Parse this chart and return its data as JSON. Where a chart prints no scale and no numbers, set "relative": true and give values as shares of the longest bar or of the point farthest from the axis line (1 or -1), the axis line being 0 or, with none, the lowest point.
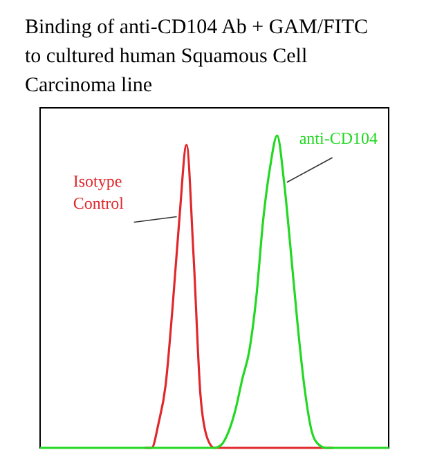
{
  "chart_data": {
    "type": "line",
    "title": "Binding of anti-CD104 Ab + GAM/FITC to cultured human Squamous Cell Carcinoma line",
    "relative": true,
    "categories": [
      null,
      null,
      null,
      null,
      null,
      null,
      null,
      null,
      null,
      null,
      null,
      null,
      null,
      null,
      null,
      null,
      null,
      null,
      null,
      null,
      null,
      null,
      null,
      null,
      null,
      null,
      null,
      null,
      null,
      null,
      null,
      null,
      null,
      null,
      null,
      null,
      null,
      null,
      null,
      null,
      null,
      null,
      null,
      null,
      null,
      null,
      null,
      null,
      null,
      null,
      null
    ],
    "series": [
      {
        "name": "Isotype Control",
        "color": "#e0282c",
        "values": [
          null,
          null,
          null,
          null,
          null,
          null,
          null,
          null,
          null,
          null,
          null,
          null,
          null,
          null,
          null,
          0,
          0,
          0.08,
          0.2,
          0.45,
          0.74,
          0.97,
          0.62,
          0.17,
          0.03,
          0,
          0,
          0,
          0,
          0,
          0,
          0,
          0,
          0,
          0,
          0,
          0,
          0,
          0,
          0,
          0,
          0,
          0,
          null,
          null,
          null,
          null,
          null,
          null,
          null,
          null
        ]
      },
      {
        "name": "anti-CD104",
        "color": "#22d822",
        "values": [
          0,
          0,
          0,
          0,
          0,
          0,
          0,
          0,
          0,
          0,
          0,
          0,
          0,
          0,
          0,
          0,
          0,
          0,
          0,
          0,
          0,
          0,
          0,
          0,
          0,
          0,
          0.01,
          0.05,
          0.12,
          0.22,
          0.31,
          0.48,
          0.73,
          0.9,
          1,
          0.85,
          0.62,
          0.38,
          0.18,
          0.05,
          0.01,
          0,
          0,
          0,
          0,
          0,
          0,
          0,
          0,
          0,
          0
        ]
      }
    ]
  }
}
